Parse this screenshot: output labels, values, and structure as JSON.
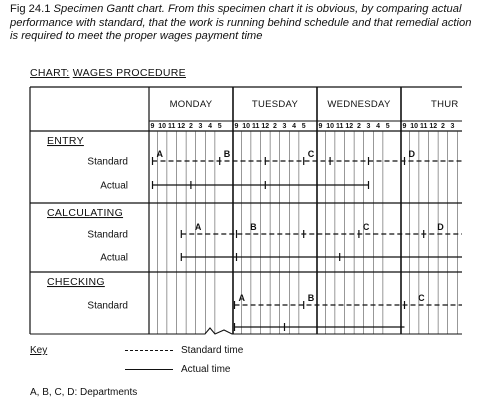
{
  "caption": {
    "fig": "Fig 24.1",
    "text": "Specimen Gantt chart. From this specimen chart it is obvious, by comparing actual performance with standard, that the work is running behind schedule and that remedial action is required to meet the proper wages payment time"
  },
  "chart_title": {
    "prefix": "CHART:",
    "name": "WAGES PROCEDURE"
  },
  "days": [
    "MONDAY",
    "TUESDAY",
    "WEDNESDAY",
    "THUR"
  ],
  "hours": [
    "9",
    "10",
    "11",
    "12",
    "2",
    "3",
    "4",
    "5"
  ],
  "sections": [
    {
      "name": "ENTRY",
      "rows": [
        "Standard",
        "Actual"
      ]
    },
    {
      "name": "CALCULATING",
      "rows": [
        "Standard",
        "Actual"
      ]
    },
    {
      "name": "CHECKING",
      "rows": [
        "Standard"
      ]
    }
  ],
  "markers": [
    {
      "section": 0,
      "row": 0,
      "label": "A",
      "day": 0,
      "hour": 0
    },
    {
      "section": 0,
      "row": 0,
      "label": "B",
      "day": 0,
      "hour": 7
    },
    {
      "section": 0,
      "row": 0,
      "label": "C",
      "day": 1,
      "hour": 7
    },
    {
      "section": 0,
      "row": 0,
      "label": "D",
      "day": 3,
      "hour": 0
    },
    {
      "section": 1,
      "row": 0,
      "label": "A",
      "day": 0,
      "hour": 4
    },
    {
      "section": 1,
      "row": 0,
      "label": "B",
      "day": 1,
      "hour": 1
    },
    {
      "section": 1,
      "row": 0,
      "label": "C",
      "day": 2,
      "hour": 4
    },
    {
      "section": 1,
      "row": 0,
      "label": "D",
      "day": 3,
      "hour": 3
    },
    {
      "section": 2,
      "row": 0,
      "label": "A",
      "day": 1,
      "hour": 0
    },
    {
      "section": 2,
      "row": 0,
      "label": "B",
      "day": 1,
      "hour": 7
    },
    {
      "section": 2,
      "row": 0,
      "label": "C",
      "day": 3,
      "hour": 1
    }
  ],
  "key": {
    "title": "Key",
    "standard": "Standard time",
    "actual": "Actual time",
    "note": "A, B, C, D: Departments"
  }
}
